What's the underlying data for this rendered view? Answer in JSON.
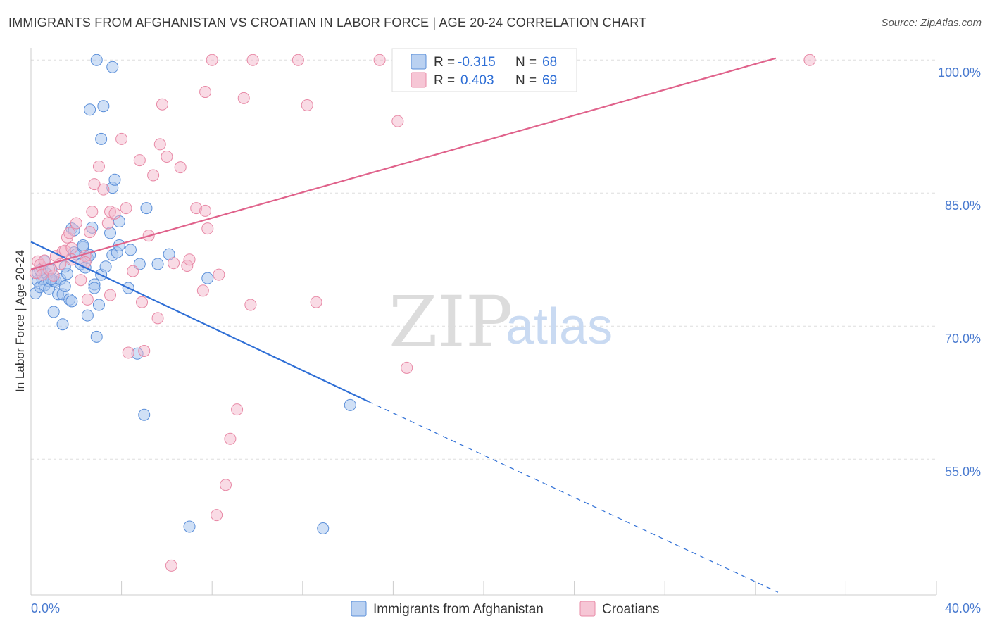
{
  "header": {
    "title": "IMMIGRANTS FROM AFGHANISTAN VS CROATIAN IN LABOR FORCE | AGE 20-24 CORRELATION CHART",
    "source": "Source: ZipAtlas.com"
  },
  "watermark": {
    "zip": "ZIP",
    "atlas": "atlas"
  },
  "colors": {
    "blue_fill": "#a9c6ee",
    "blue_stroke": "#5b8fd9",
    "blue_line": "#2f6fd6",
    "pink_fill": "#f4b8cb",
    "pink_stroke": "#e889a6",
    "pink_line": "#e0628b",
    "grid": "#dddddd",
    "tick_text": "#4a7bd0"
  },
  "legend": {
    "rows": [
      {
        "r_label": "R =",
        "r_value": "-0.315",
        "n_label": "N =",
        "n_value": "68"
      },
      {
        "r_label": "R =",
        "r_value": "0.403",
        "n_label": "N =",
        "n_value": "69"
      }
    ],
    "bottom": [
      "Immigrants from Afghanistan",
      "Croatians"
    ]
  },
  "chart_data": {
    "type": "scatter",
    "title": "IMMIGRANTS FROM AFGHANISTAN VS CROATIAN IN LABOR FORCE | AGE 20-24 CORRELATION CHART",
    "xlabel": "",
    "ylabel": "In Labor Force | Age 20-24",
    "xlim": [
      0,
      40
    ],
    "ylim": [
      39.7,
      102.0
    ],
    "x_tick_labels": [
      "0.0%",
      "40.0%"
    ],
    "y_ticks": [
      55.0,
      70.0,
      85.0,
      100.0
    ],
    "y_tick_labels": [
      "55.0%",
      "70.0%",
      "85.0%",
      "100.0%"
    ],
    "grid": true,
    "legend_position": "top-center",
    "series": [
      {
        "name": "Immigrants from Afghanistan",
        "r": -0.315,
        "n": 68,
        "trend": {
          "x": [
            0.0,
            14.9
          ],
          "y": [
            79.5,
            61.5
          ],
          "dashed_to": [
            33.0,
            40.0
          ]
        },
        "points": [
          [
            0.2,
            73.7
          ],
          [
            0.3,
            75.1
          ],
          [
            0.3,
            76.0
          ],
          [
            0.4,
            74.4
          ],
          [
            0.5,
            75.3
          ],
          [
            0.5,
            76.5
          ],
          [
            0.6,
            77.3
          ],
          [
            0.6,
            74.6
          ],
          [
            0.7,
            75.9
          ],
          [
            0.8,
            75.1
          ],
          [
            0.8,
            74.2
          ],
          [
            0.9,
            76.4
          ],
          [
            1.0,
            71.6
          ],
          [
            1.0,
            75.1
          ],
          [
            1.1,
            75.0
          ],
          [
            1.2,
            73.6
          ],
          [
            1.3,
            75.3
          ],
          [
            1.4,
            73.6
          ],
          [
            1.4,
            70.2
          ],
          [
            1.5,
            74.5
          ],
          [
            1.6,
            75.9
          ],
          [
            1.7,
            73.0
          ],
          [
            1.8,
            72.8
          ],
          [
            1.8,
            81.0
          ],
          [
            1.9,
            80.8
          ],
          [
            1.9,
            78.3
          ],
          [
            2.0,
            78.1
          ],
          [
            2.2,
            77.0
          ],
          [
            2.3,
            78.9
          ],
          [
            2.3,
            79.1
          ],
          [
            2.4,
            76.6
          ],
          [
            2.5,
            77.7
          ],
          [
            2.5,
            71.2
          ],
          [
            2.6,
            94.4
          ],
          [
            2.6,
            78.0
          ],
          [
            2.7,
            81.1
          ],
          [
            2.8,
            74.7
          ],
          [
            2.8,
            74.3
          ],
          [
            2.9,
            68.8
          ],
          [
            2.9,
            100.0
          ],
          [
            3.0,
            72.4
          ],
          [
            3.1,
            75.8
          ],
          [
            3.1,
            91.1
          ],
          [
            3.2,
            94.8
          ],
          [
            3.3,
            76.7
          ],
          [
            3.5,
            80.5
          ],
          [
            3.6,
            78.0
          ],
          [
            3.6,
            99.2
          ],
          [
            3.6,
            85.6
          ],
          [
            3.7,
            86.5
          ],
          [
            3.8,
            78.3
          ],
          [
            3.9,
            79.1
          ],
          [
            3.9,
            81.8
          ],
          [
            4.3,
            74.3
          ],
          [
            4.4,
            78.6
          ],
          [
            4.7,
            66.9
          ],
          [
            4.8,
            77.0
          ],
          [
            5.0,
            60.0
          ],
          [
            5.1,
            83.3
          ],
          [
            5.6,
            77.0
          ],
          [
            6.1,
            78.1
          ],
          [
            7.0,
            47.4
          ],
          [
            7.8,
            75.4
          ],
          [
            12.9,
            47.2
          ],
          [
            14.1,
            61.1
          ],
          [
            0.4,
            76.3
          ],
          [
            0.9,
            75.3
          ],
          [
            1.5,
            76.7
          ]
        ]
      },
      {
        "name": "Croatians",
        "r": 0.403,
        "n": 69,
        "trend": {
          "x": [
            0.0,
            32.9
          ],
          "y": [
            76.4,
            100.2
          ]
        },
        "points": [
          [
            0.2,
            76.0
          ],
          [
            0.3,
            77.3
          ],
          [
            0.4,
            76.9
          ],
          [
            0.5,
            75.8
          ],
          [
            0.6,
            77.4
          ],
          [
            0.8,
            76.4
          ],
          [
            1.0,
            75.7
          ],
          [
            1.1,
            77.9
          ],
          [
            1.3,
            77.0
          ],
          [
            1.4,
            78.4
          ],
          [
            1.5,
            78.5
          ],
          [
            1.6,
            80.0
          ],
          [
            1.7,
            80.5
          ],
          [
            1.8,
            77.5
          ],
          [
            1.8,
            78.8
          ],
          [
            2.0,
            81.6
          ],
          [
            2.2,
            75.2
          ],
          [
            2.4,
            77.9
          ],
          [
            2.4,
            77.2
          ],
          [
            2.5,
            73.0
          ],
          [
            2.6,
            80.6
          ],
          [
            2.7,
            82.9
          ],
          [
            2.8,
            86.0
          ],
          [
            3.0,
            88.0
          ],
          [
            3.2,
            85.4
          ],
          [
            3.4,
            81.6
          ],
          [
            3.5,
            82.9
          ],
          [
            3.5,
            73.5
          ],
          [
            3.7,
            82.7
          ],
          [
            4.0,
            91.1
          ],
          [
            4.2,
            83.3
          ],
          [
            4.3,
            67.0
          ],
          [
            4.5,
            76.2
          ],
          [
            4.8,
            88.7
          ],
          [
            4.9,
            72.7
          ],
          [
            5.0,
            67.2
          ],
          [
            5.2,
            80.2
          ],
          [
            5.4,
            87.0
          ],
          [
            5.6,
            70.9
          ],
          [
            5.7,
            90.5
          ],
          [
            5.8,
            95.0
          ],
          [
            6.0,
            89.1
          ],
          [
            6.2,
            43.0
          ],
          [
            6.3,
            77.1
          ],
          [
            6.6,
            87.9
          ],
          [
            6.9,
            76.8
          ],
          [
            7.0,
            77.5
          ],
          [
            7.3,
            83.3
          ],
          [
            7.6,
            74.0
          ],
          [
            7.7,
            96.4
          ],
          [
            7.7,
            83.0
          ],
          [
            7.8,
            81.0
          ],
          [
            8.2,
            48.7
          ],
          [
            8.3,
            75.8
          ],
          [
            8.6,
            52.1
          ],
          [
            8.8,
            57.3
          ],
          [
            9.1,
            60.6
          ],
          [
            9.4,
            95.7
          ],
          [
            9.7,
            72.4
          ],
          [
            12.2,
            94.9
          ],
          [
            12.6,
            72.7
          ],
          [
            16.2,
            93.1
          ],
          [
            16.6,
            65.3
          ],
          [
            8.0,
            100.0
          ],
          [
            9.8,
            100.0
          ],
          [
            11.8,
            100.0
          ],
          [
            15.4,
            100.0
          ],
          [
            22.2,
            100.0
          ],
          [
            34.4,
            100.0
          ]
        ]
      }
    ]
  }
}
